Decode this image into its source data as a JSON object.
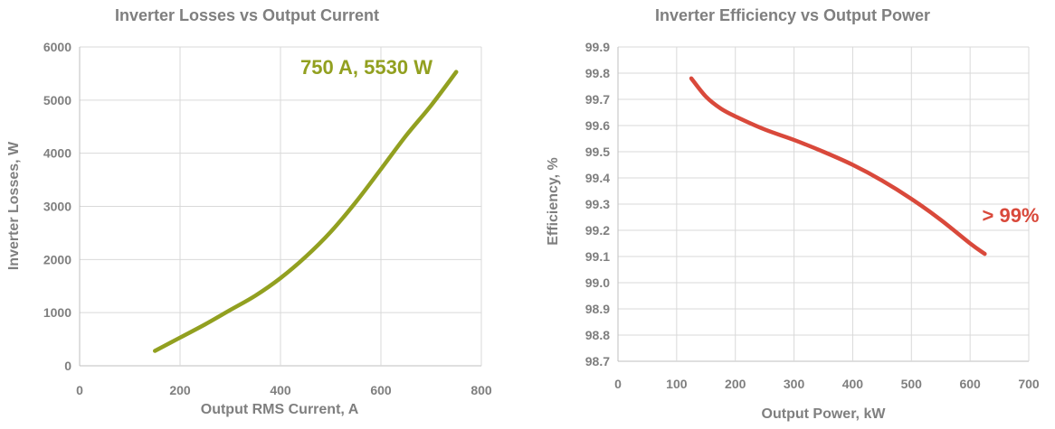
{
  "chart_data": [
    {
      "type": "line",
      "title": "Inverter Losses vs Output Current",
      "xlabel": "Output RMS Current, A",
      "ylabel": "Inverter Losses, W",
      "xlim": [
        0,
        800
      ],
      "ylim": [
        0,
        6000
      ],
      "xticks": [
        0,
        200,
        400,
        600,
        800
      ],
      "yticks": [
        0,
        1000,
        2000,
        3000,
        4000,
        5000,
        6000
      ],
      "grid": true,
      "color": "#92a020",
      "series": [
        {
          "x": [
            150,
            200,
            250,
            300,
            350,
            400,
            450,
            500,
            550,
            600,
            650,
            700,
            750
          ],
          "values": [
            280,
            530,
            780,
            1050,
            1320,
            1650,
            2050,
            2520,
            3080,
            3700,
            4330,
            4900,
            5530
          ]
        }
      ],
      "annotation": "750 A, 5530 W"
    },
    {
      "type": "line",
      "title": "Inverter Efficiency vs Output Power",
      "xlabel": "Output Power, kW",
      "ylabel": "Efficiency, %",
      "xlim": [
        0,
        700
      ],
      "ylim": [
        98.7,
        99.9
      ],
      "xticks": [
        0,
        100,
        200,
        300,
        400,
        500,
        600,
        700
      ],
      "yticks": [
        98.7,
        98.8,
        98.9,
        99.0,
        99.1,
        99.2,
        99.3,
        99.4,
        99.5,
        99.6,
        99.7,
        99.8,
        99.9
      ],
      "ytick_labels": [
        "98.7",
        "98.8",
        "98.9",
        "99.0",
        "99.1",
        "99.2",
        "99.3",
        "99.4",
        "99.5",
        "99.6",
        "99.7",
        "99.8",
        "99.9"
      ],
      "grid": true,
      "color": "#d9493b",
      "series": [
        {
          "x": [
            125,
            150,
            175,
            200,
            250,
            300,
            350,
            400,
            450,
            500,
            550,
            600,
            625
          ],
          "values": [
            99.78,
            99.71,
            99.665,
            99.635,
            99.585,
            99.545,
            99.5,
            99.45,
            99.39,
            99.32,
            99.24,
            99.15,
            99.11
          ]
        }
      ],
      "annotation": "> 99%"
    }
  ]
}
